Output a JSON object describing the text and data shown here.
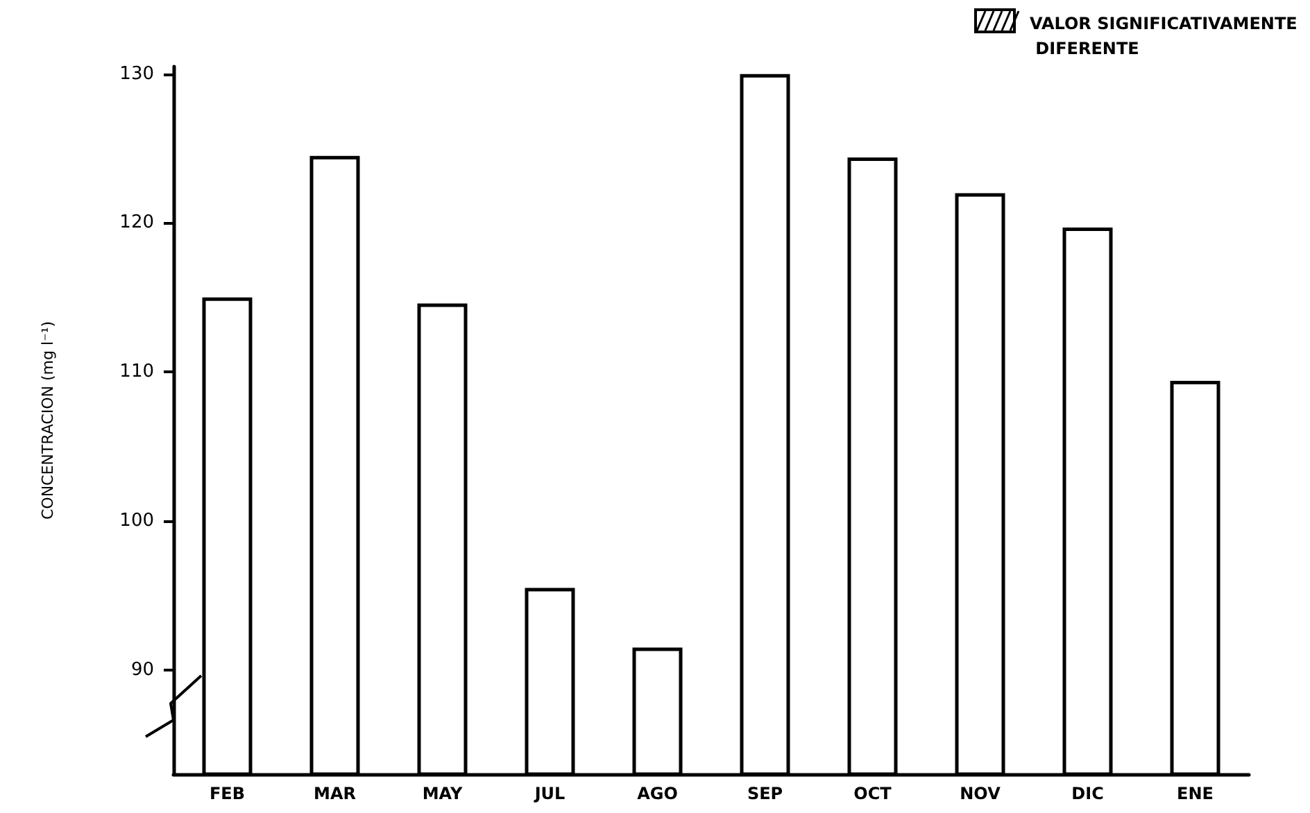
{
  "chart_data": {
    "type": "bar",
    "ylabel": "CONCENTRACION (mg l⁻¹)",
    "annotations": [
      "VALOR SIGNIFICATIVAMENTE DIFERENTE"
    ],
    "categories": [
      "FEB",
      "MAR",
      "MAY",
      "JUL",
      "AGO",
      "SEP",
      "OCT",
      "NOV",
      "DIC",
      "ENE"
    ],
    "values": [
      115,
      124.5,
      114.6,
      95.5,
      91.5,
      130,
      124.4,
      122,
      119.7,
      109.4
    ],
    "color": "#ffffff",
    "ylim": [
      83,
      130.5
    ],
    "yticks": [
      90,
      100,
      110,
      120,
      130
    ],
    "grid": false
  }
}
